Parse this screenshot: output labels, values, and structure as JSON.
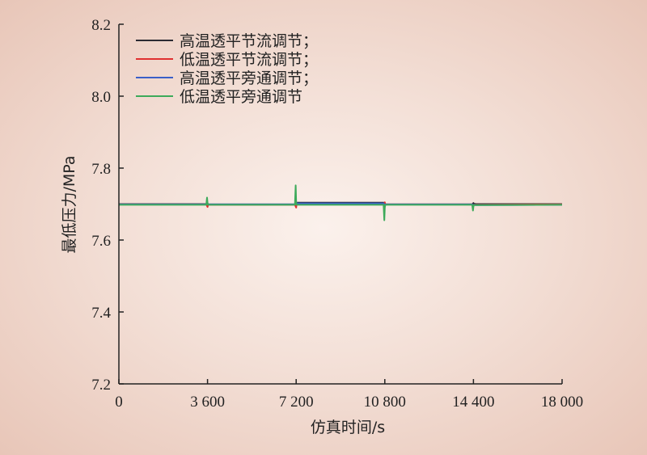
{
  "chart_data": {
    "type": "line",
    "title": "",
    "xlabel": "仿真时间/s",
    "ylabel": "最低压力/MPa",
    "xlim": [
      0,
      18000
    ],
    "ylim": [
      7.2,
      8.2
    ],
    "x_ticks": [
      0,
      3600,
      7200,
      10800,
      14400,
      18000
    ],
    "x_tick_labels": [
      "0",
      "3 600",
      "7 200",
      "10 800",
      "14 400",
      "18 000"
    ],
    "y_ticks": [
      7.2,
      7.4,
      7.6,
      7.8,
      8.0,
      8.2
    ],
    "y_tick_labels": [
      "7.2",
      "7.4",
      "7.6",
      "7.8",
      "8.0",
      "8.2"
    ],
    "grid": false,
    "legend_position": "top-left",
    "series": [
      {
        "name": "高温透平节流调节；",
        "color": "#2b2b33",
        "x": [
          0,
          3550,
          3600,
          3620,
          3700,
          7150,
          7200,
          7220,
          7300,
          10750,
          10800,
          10820,
          10900,
          14350,
          14400,
          14420,
          14500,
          18000
        ],
        "y": [
          7.7,
          7.7,
          7.694,
          7.699,
          7.699,
          7.699,
          7.704,
          7.704,
          7.704,
          7.704,
          7.697,
          7.699,
          7.699,
          7.699,
          7.703,
          7.701,
          7.7,
          7.7
        ]
      },
      {
        "name": "低温透平节流调节；",
        "color": "#e03030",
        "x": [
          0,
          3550,
          3600,
          3620,
          3700,
          7150,
          7200,
          7220,
          7300,
          10750,
          10800,
          10820,
          10900,
          14350,
          14400,
          14420,
          14500,
          18000
        ],
        "y": [
          7.699,
          7.699,
          7.692,
          7.698,
          7.698,
          7.698,
          7.69,
          7.701,
          7.701,
          7.701,
          7.705,
          7.699,
          7.699,
          7.699,
          7.694,
          7.698,
          7.698,
          7.699
        ]
      },
      {
        "name": "高温透平旁通调节；",
        "color": "#3a5fc8",
        "x": [
          0,
          3550,
          3600,
          3620,
          3700,
          7150,
          7200,
          7220,
          7300,
          10750,
          10800,
          10820,
          10900,
          14350,
          14400,
          14420,
          14500,
          18000
        ],
        "y": [
          7.699,
          7.699,
          7.703,
          7.699,
          7.699,
          7.699,
          7.705,
          7.702,
          7.702,
          7.702,
          7.696,
          7.699,
          7.699,
          7.699,
          7.696,
          7.698,
          7.697,
          7.698
        ]
      },
      {
        "name": "低温透平旁通调节",
        "color": "#3daa5a",
        "x": [
          0,
          3550,
          3580,
          3600,
          3620,
          3700,
          7150,
          7180,
          7200,
          7220,
          7300,
          10750,
          10780,
          10800,
          10820,
          10900,
          14350,
          14380,
          14400,
          14420,
          14500,
          18000
        ],
        "y": [
          7.698,
          7.698,
          7.718,
          7.703,
          7.698,
          7.698,
          7.698,
          7.752,
          7.705,
          7.698,
          7.698,
          7.698,
          7.655,
          7.69,
          7.698,
          7.698,
          7.698,
          7.682,
          7.694,
          7.697,
          7.697,
          7.698
        ]
      }
    ]
  }
}
